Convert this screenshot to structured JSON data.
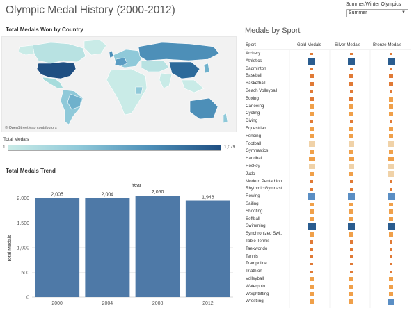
{
  "header": {
    "title": "Olympic Medal History (2000-2012)",
    "filter_label": "Summer/Winter Olympics",
    "filter_value": "Summer"
  },
  "map": {
    "title": "Total Medals Won by Country",
    "credit": "© OpenStreetMap contributors",
    "legend_title": "Total Medals",
    "legend_min": "1",
    "legend_max": "1,079"
  },
  "colors": {
    "bar": "#4e79a7",
    "map_low": "#c9ebe7",
    "map_high": "#1f4f82"
  },
  "trend": {
    "title": "Total Medals Trend",
    "chart_data": {
      "type": "bar",
      "xlabel": "Year",
      "ylabel": "Total Medals",
      "categories": [
        "2000",
        "2004",
        "2008",
        "2012"
      ],
      "values": [
        2005,
        2004,
        2050,
        1946
      ],
      "data_labels": [
        "2,005",
        "2,004",
        "2,050",
        "1,946"
      ],
      "yticks": [
        "0",
        "500",
        "1,000",
        "1,500",
        "2,000"
      ],
      "ytick_values": [
        0,
        500,
        1000,
        1500,
        2000
      ],
      "ylim": [
        0,
        2150
      ],
      "grid": true
    }
  },
  "sports": {
    "title": "Medals by Sport",
    "columns": [
      "Sport",
      "Gold Medals",
      "Silver Medals",
      "Bronze Medals"
    ],
    "rows": [
      {
        "name": "Archery",
        "g": 12,
        "s": 12,
        "b": 12
      },
      {
        "name": "Athletics",
        "g": 190,
        "s": 192,
        "b": 191
      },
      {
        "name": "Badminton",
        "g": 16,
        "s": 16,
        "b": 19
      },
      {
        "name": "Baseball",
        "g": 36,
        "s": 36,
        "b": 36
      },
      {
        "name": "Basketball",
        "g": 36,
        "s": 36,
        "b": 36
      },
      {
        "name": "Beach Volleyball",
        "g": 6,
        "s": 6,
        "b": 6
      },
      {
        "name": "Boxing",
        "g": 33,
        "s": 33,
        "b": 66
      },
      {
        "name": "Canoeing",
        "g": 66,
        "s": 66,
        "b": 66
      },
      {
        "name": "Cycling",
        "g": 60,
        "s": 60,
        "b": 60
      },
      {
        "name": "Diving",
        "g": 28,
        "s": 28,
        "b": 28
      },
      {
        "name": "Equestrian",
        "g": 50,
        "s": 50,
        "b": 50
      },
      {
        "name": "Fencing",
        "g": 60,
        "s": 60,
        "b": 64
      },
      {
        "name": "Football",
        "g": 100,
        "s": 100,
        "b": 100
      },
      {
        "name": "Gymnastics",
        "g": 60,
        "s": 60,
        "b": 62
      },
      {
        "name": "Handball",
        "g": 90,
        "s": 90,
        "b": 90
      },
      {
        "name": "Hockey",
        "g": 100,
        "s": 100,
        "b": 100
      },
      {
        "name": "Judo",
        "g": 56,
        "s": 56,
        "b": 112
      },
      {
        "name": "Modern Pentathlon",
        "g": 6,
        "s": 6,
        "b": 6
      },
      {
        "name": "Rhythmic Gymnast..",
        "g": 12,
        "s": 12,
        "b": 12
      },
      {
        "name": "Rowing",
        "g": 150,
        "s": 150,
        "b": 150
      },
      {
        "name": "Sailing",
        "g": 40,
        "s": 40,
        "b": 40
      },
      {
        "name": "Shooting",
        "g": 45,
        "s": 45,
        "b": 45
      },
      {
        "name": "Softball",
        "g": 45,
        "s": 45,
        "b": 45
      },
      {
        "name": "Swimming",
        "g": 240,
        "s": 200,
        "b": 190
      },
      {
        "name": "Synchronized Swi..",
        "g": 60,
        "s": 60,
        "b": 60
      },
      {
        "name": "Table Tennis",
        "g": 20,
        "s": 20,
        "b": 20
      },
      {
        "name": "Taekwondo",
        "g": 30,
        "s": 30,
        "b": 30
      },
      {
        "name": "Tennis",
        "g": 25,
        "s": 25,
        "b": 25
      },
      {
        "name": "Trampoline",
        "g": 6,
        "s": 6,
        "b": 6
      },
      {
        "name": "Triathlon",
        "g": 6,
        "s": 6,
        "b": 6
      },
      {
        "name": "Volleyball",
        "g": 48,
        "s": 48,
        "b": 48
      },
      {
        "name": "Waterpolo",
        "g": 48,
        "s": 48,
        "b": 48
      },
      {
        "name": "Weightlifting",
        "g": 45,
        "s": 45,
        "b": 45
      },
      {
        "name": "Wrestling",
        "g": 70,
        "s": 70,
        "b": 140
      }
    ]
  }
}
